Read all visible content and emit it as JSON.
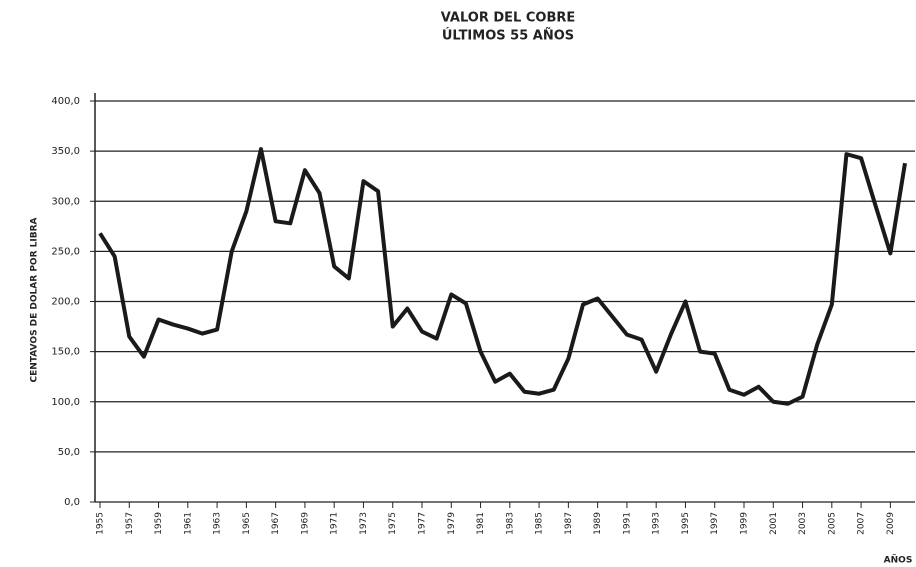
{
  "chart_data": {
    "type": "line",
    "title": "VALOR DEL COBRE",
    "subtitle": "ÚLTIMOS 55 AÑOS",
    "y_label": "CENTAVOS DE DOLAR POR LIBRA",
    "x_label": "AÑOS",
    "x": [
      1955,
      1956,
      1957,
      1958,
      1959,
      1960,
      1961,
      1962,
      1963,
      1964,
      1965,
      1966,
      1967,
      1968,
      1969,
      1970,
      1971,
      1972,
      1973,
      1974,
      1975,
      1976,
      1977,
      1978,
      1979,
      1980,
      1981,
      1982,
      1983,
      1984,
      1985,
      1986,
      1987,
      1988,
      1989,
      1990,
      1991,
      1992,
      1993,
      1994,
      1995,
      1996,
      1997,
      1998,
      1999,
      2000,
      2001,
      2002,
      2003,
      2004,
      2005,
      2006,
      2007,
      2008,
      2009,
      2010
    ],
    "series": [
      {
        "color": "#1a1a1a",
        "values": [
          268,
          245,
          165,
          145,
          182,
          177,
          173,
          168,
          172,
          250,
          290,
          352,
          280,
          278,
          331,
          308,
          235,
          223,
          320,
          310,
          175,
          193,
          170,
          163,
          207,
          198,
          150,
          120,
          128,
          110,
          108,
          112,
          143,
          197,
          203,
          185,
          167,
          162,
          130,
          167,
          200,
          150,
          148,
          112,
          107,
          115,
          100,
          98,
          105,
          157,
          197,
          347,
          343,
          295,
          248,
          338
        ]
      }
    ],
    "xlim": [
      1955,
      2010
    ],
    "xticks": [
      1955,
      1957,
      1959,
      1961,
      1963,
      1965,
      1967,
      1969,
      1971,
      1973,
      1975,
      1977,
      1979,
      1981,
      1983,
      1985,
      1987,
      1989,
      1991,
      1993,
      1995,
      1997,
      1999,
      2001,
      2003,
      2005,
      2007,
      2009
    ],
    "ylim": [
      0,
      400
    ],
    "yticks": [
      {
        "value": 0,
        "label": "0,0"
      },
      {
        "value": 50,
        "label": "50,0"
      },
      {
        "value": 100,
        "label": "100,0"
      },
      {
        "value": 150,
        "label": "150,0"
      },
      {
        "value": 200,
        "label": "200,0"
      },
      {
        "value": 250,
        "label": "250,0"
      },
      {
        "value": 300,
        "label": "300,0"
      },
      {
        "value": 350,
        "label": "350,0"
      },
      {
        "value": 400,
        "label": "400,0"
      }
    ],
    "grid": true
  }
}
